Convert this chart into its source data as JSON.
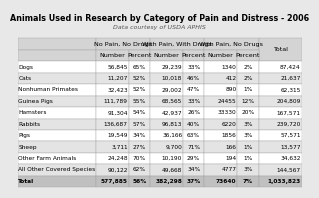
{
  "title": "Animals Used in Research by Category of Pain and Distress - 2006",
  "subtitle": "Data courtesy of USDA APHIS",
  "col_groups": [
    "No Pain, No Drugs",
    "With Pain, With Drugs",
    "With Pain, No Drugs"
  ],
  "col_sub": [
    "Number",
    "Percent",
    "Number",
    "Percent",
    "Number",
    "Percent"
  ],
  "last_col": "Total",
  "rows": [
    {
      "animal": "Dogs",
      "npnd_n": "56,845",
      "npnd_p": "65%",
      "wpwd_n": "29,239",
      "wpwd_p": "33%",
      "wpnd_n": "1340",
      "wpnd_p": "2%",
      "total": "87,424"
    },
    {
      "animal": "Cats",
      "npnd_n": "11,207",
      "npnd_p": "52%",
      "wpwd_n": "10,018",
      "wpwd_p": "46%",
      "wpnd_n": "412",
      "wpnd_p": "2%",
      "total": "21,637"
    },
    {
      "animal": "Nonhuman Primates",
      "npnd_n": "32,423",
      "npnd_p": "52%",
      "wpwd_n": "29,002",
      "wpwd_p": "47%",
      "wpnd_n": "890",
      "wpnd_p": "1%",
      "total": "62,315"
    },
    {
      "animal": "Guinea Pigs",
      "npnd_n": "111,789",
      "npnd_p": "55%",
      "wpwd_n": "68,565",
      "wpwd_p": "33%",
      "wpnd_n": "24455",
      "wpnd_p": "12%",
      "total": "204,809"
    },
    {
      "animal": "Hamsters",
      "npnd_n": "91,304",
      "npnd_p": "54%",
      "wpwd_n": "42,937",
      "wpwd_p": "26%",
      "wpnd_n": "33330",
      "wpnd_p": "20%",
      "total": "167,571"
    },
    {
      "animal": "Rabbits",
      "npnd_n": "136,687",
      "npnd_p": "57%",
      "wpwd_n": "96,813",
      "wpwd_p": "40%",
      "wpnd_n": "6220",
      "wpnd_p": "3%",
      "total": "239,720"
    },
    {
      "animal": "Pigs",
      "npnd_n": "19,549",
      "npnd_p": "34%",
      "wpwd_n": "36,166",
      "wpwd_p": "63%",
      "wpnd_n": "1856",
      "wpnd_p": "3%",
      "total": "57,571"
    },
    {
      "animal": "Sheep",
      "npnd_n": "3,711",
      "npnd_p": "27%",
      "wpwd_n": "9,700",
      "wpwd_p": "71%",
      "wpnd_n": "166",
      "wpnd_p": "1%",
      "total": "13,577"
    },
    {
      "animal": "Other Farm Animals",
      "npnd_n": "24,248",
      "npnd_p": "70%",
      "wpwd_n": "10,190",
      "wpwd_p": "29%",
      "wpnd_n": "194",
      "wpnd_p": "1%",
      "total": "34,632"
    },
    {
      "animal": "All Other Covered Species",
      "npnd_n": "90,122",
      "npnd_p": "62%",
      "wpwd_n": "49,668",
      "wpwd_p": "34%",
      "wpnd_n": "4777",
      "wpnd_p": "3%",
      "total": "144,567"
    },
    {
      "animal": "Total",
      "npnd_n": "577,885",
      "npnd_p": "56%",
      "wpwd_n": "382,298",
      "wpwd_p": "37%",
      "wpnd_n": "73640",
      "wpnd_p": "7%",
      "total": "1,033,823"
    }
  ],
  "light_gray": "#d4d4d4",
  "mid_gray": "#c0c0c0",
  "white": "#ffffff",
  "even_gray": "#e4e4e4",
  "border_color": "#999999",
  "text_color": "#000000",
  "title_fontsize": 5.8,
  "subtitle_fontsize": 4.5,
  "cell_fontsize": 4.2,
  "header_fontsize": 4.6,
  "fig_bg": "#e8e8e8"
}
